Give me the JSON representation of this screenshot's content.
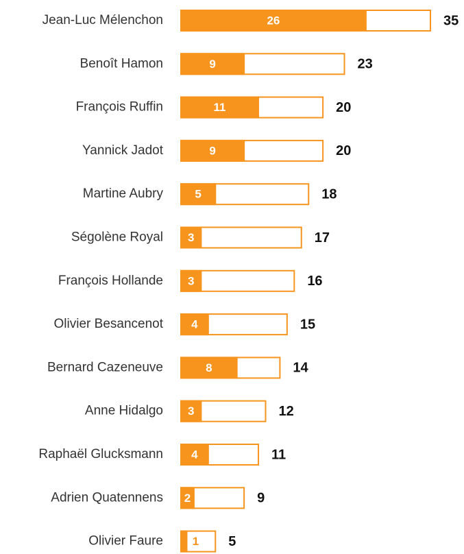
{
  "chart_data": {
    "type": "bar",
    "orientation": "horizontal",
    "categories": [
      "Jean-Luc Mélenchon",
      "Benoît Hamon",
      "François Ruffin",
      "Yannick Jadot",
      "Martine Aubry",
      "Ségolène Royal",
      "François Hollande",
      "Olivier Besancenot",
      "Bernard Cazeneuve",
      "Anne Hidalgo",
      "Raphaël Glucksmann",
      "Adrien Quatennens",
      "Olivier Faure"
    ],
    "series": [
      {
        "color": "#f7941d",
        "values": [
          26,
          9,
          11,
          9,
          5,
          3,
          3,
          4,
          8,
          3,
          4,
          2,
          1
        ]
      },
      {
        "color": "#f7941d",
        "values": [
          35,
          23,
          20,
          20,
          18,
          17,
          16,
          15,
          14,
          12,
          11,
          9,
          5
        ]
      }
    ]
  }
}
